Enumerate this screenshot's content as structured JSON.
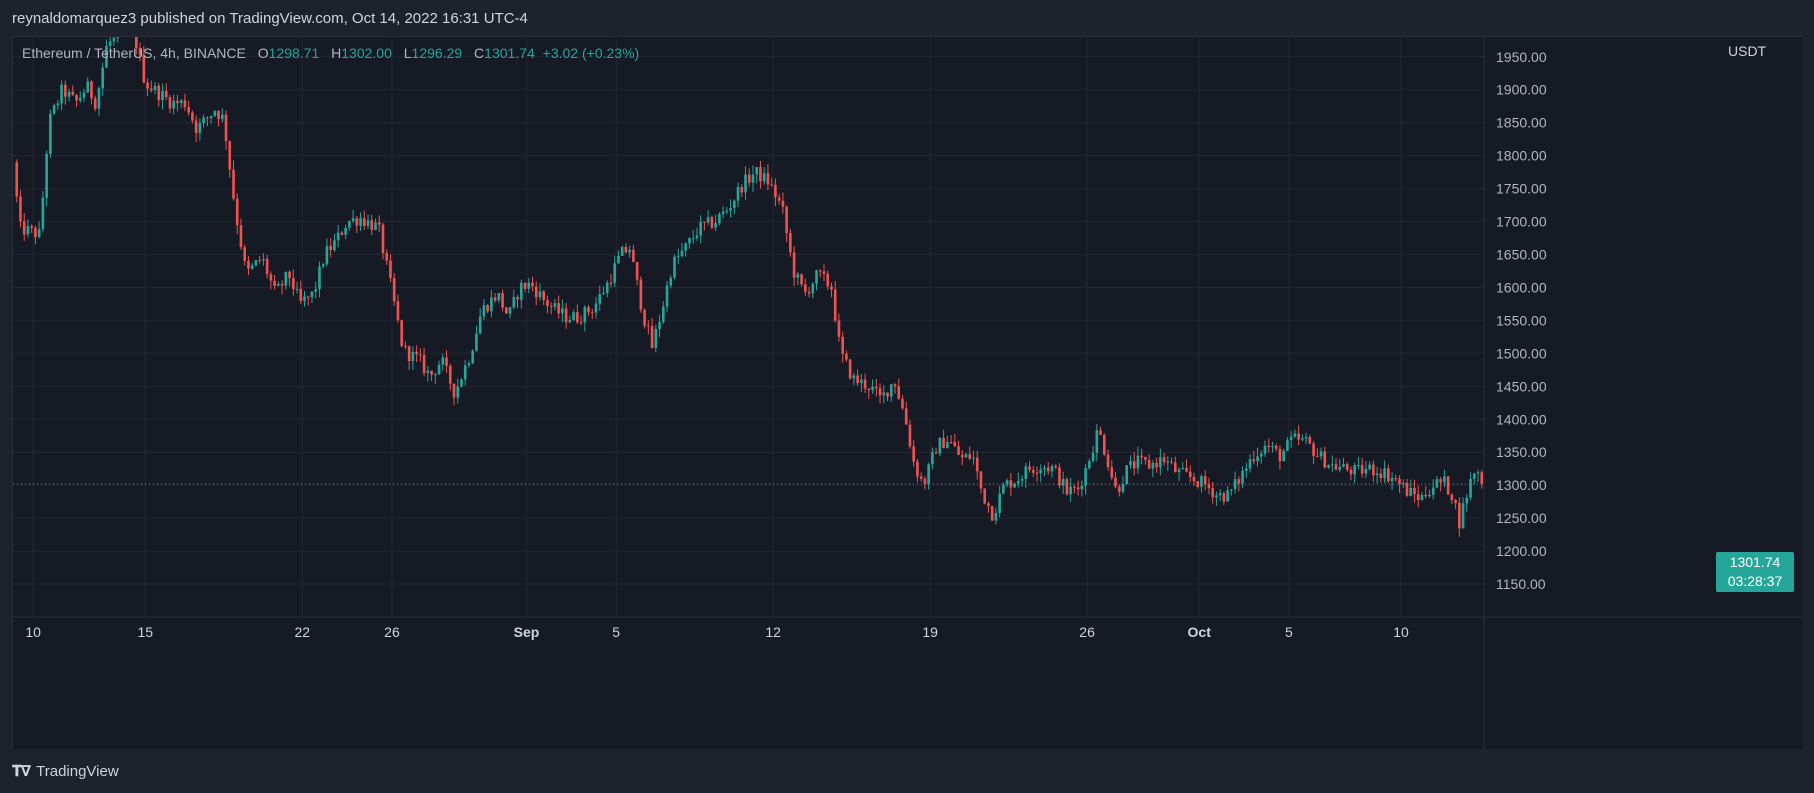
{
  "header": {
    "publish_line": "reynaldomarquez3 published on TradingView.com, Oct 14, 2022 16:31 UTC-4"
  },
  "legend": {
    "symbol": "Ethereum / TetherUS, 4h, BINANCE",
    "open_label": "O",
    "open_value": "1298.71",
    "high_label": "H",
    "high_value": "1302.00",
    "low_label": "L",
    "low_value": "1296.29",
    "close_label": "C",
    "close_value": "1301.74",
    "change": "+3.02 (+0.23%)"
  },
  "price_axis": {
    "unit": "USDT"
  },
  "last_price": {
    "price": "1301.74",
    "countdown": "03:28:37"
  },
  "footer": {
    "brand": "TradingView"
  },
  "colors": {
    "up": "#26a69a",
    "down": "#ef5350",
    "background": "#161a25",
    "grid": "#232734"
  },
  "chart_data": {
    "type": "candlestick",
    "ylim": [
      1100,
      1980
    ],
    "y_ticks": [
      1150,
      1200,
      1250,
      1300,
      1350,
      1400,
      1450,
      1500,
      1550,
      1600,
      1650,
      1700,
      1750,
      1800,
      1850,
      1900,
      1950
    ],
    "y_tick_labels": [
      "1150.00",
      "1200.00",
      "1250.00",
      "1300.00",
      "1350.00",
      "1400.00",
      "1450.00",
      "1500.00",
      "1550.00",
      "1600.00",
      "1650.00",
      "1700.00",
      "1750.00",
      "1800.00",
      "1850.00",
      "1900.00",
      "1950.00"
    ],
    "x_ticks": [
      {
        "label": "10",
        "day": 0,
        "bold": false
      },
      {
        "label": "15",
        "day": 5,
        "bold": false
      },
      {
        "label": "22",
        "day": 12,
        "bold": false
      },
      {
        "label": "26",
        "day": 16,
        "bold": false
      },
      {
        "label": "Sep",
        "day": 22,
        "bold": true
      },
      {
        "label": "5",
        "day": 26,
        "bold": false
      },
      {
        "label": "12",
        "day": 33,
        "bold": false
      },
      {
        "label": "19",
        "day": 40,
        "bold": false
      },
      {
        "label": "26",
        "day": 47,
        "bold": false
      },
      {
        "label": "Oct",
        "day": 52,
        "bold": true
      },
      {
        "label": "5",
        "day": 56,
        "bold": false
      },
      {
        "label": "10",
        "day": 61,
        "bold": false
      }
    ],
    "x_range_days": [
      -0.9,
      64.7
    ],
    "last_price_value": 1301.74,
    "keypoints": [
      [
        -0.9,
        1790
      ],
      [
        -0.6,
        1690
      ],
      [
        0.3,
        1680
      ],
      [
        0.7,
        1850
      ],
      [
        1.3,
        1900
      ],
      [
        1.9,
        1880
      ],
      [
        2.4,
        1905
      ],
      [
        2.8,
        1880
      ],
      [
        3.3,
        1970
      ],
      [
        4.2,
        1985
      ],
      [
        4.5,
        1985
      ],
      [
        5.0,
        1910
      ],
      [
        5.6,
        1895
      ],
      [
        6.2,
        1880
      ],
      [
        6.8,
        1880
      ],
      [
        7.3,
        1840
      ],
      [
        8.1,
        1870
      ],
      [
        8.5,
        1855
      ],
      [
        9.0,
        1720
      ],
      [
        9.5,
        1620
      ],
      [
        10.2,
        1645
      ],
      [
        10.8,
        1590
      ],
      [
        11.4,
        1620
      ],
      [
        11.9,
        1575
      ],
      [
        12.5,
        1590
      ],
      [
        13.0,
        1650
      ],
      [
        13.5,
        1670
      ],
      [
        14.0,
        1700
      ],
      [
        14.6,
        1705
      ],
      [
        15.4,
        1690
      ],
      [
        15.9,
        1610
      ],
      [
        16.5,
        1505
      ],
      [
        17.2,
        1490
      ],
      [
        17.7,
        1465
      ],
      [
        18.2,
        1490
      ],
      [
        18.8,
        1440
      ],
      [
        19.5,
        1500
      ],
      [
        20.0,
        1565
      ],
      [
        20.7,
        1590
      ],
      [
        21.2,
        1555
      ],
      [
        21.7,
        1600
      ],
      [
        22.2,
        1605
      ],
      [
        22.8,
        1580
      ],
      [
        23.3,
        1565
      ],
      [
        23.8,
        1555
      ],
      [
        24.3,
        1555
      ],
      [
        25.0,
        1570
      ],
      [
        25.6,
        1605
      ],
      [
        26.2,
        1650
      ],
      [
        26.6,
        1660
      ],
      [
        27.2,
        1560
      ],
      [
        27.6,
        1510
      ],
      [
        28.0,
        1560
      ],
      [
        28.5,
        1635
      ],
      [
        29.1,
        1660
      ],
      [
        29.7,
        1690
      ],
      [
        30.4,
        1700
      ],
      [
        31.0,
        1720
      ],
      [
        31.6,
        1755
      ],
      [
        32.2,
        1775
      ],
      [
        32.8,
        1760
      ],
      [
        33.4,
        1720
      ],
      [
        33.9,
        1625
      ],
      [
        34.4,
        1590
      ],
      [
        35.0,
        1620
      ],
      [
        35.6,
        1600
      ],
      [
        36.0,
        1500
      ],
      [
        36.6,
        1460
      ],
      [
        37.3,
        1450
      ],
      [
        37.8,
        1430
      ],
      [
        38.4,
        1460
      ],
      [
        38.9,
        1400
      ],
      [
        39.3,
        1330
      ],
      [
        39.7,
        1300
      ],
      [
        40.3,
        1360
      ],
      [
        40.8,
        1370
      ],
      [
        41.4,
        1340
      ],
      [
        41.9,
        1345
      ],
      [
        42.3,
        1290
      ],
      [
        42.8,
        1255
      ],
      [
        43.3,
        1300
      ],
      [
        43.9,
        1310
      ],
      [
        44.4,
        1325
      ],
      [
        45.0,
        1330
      ],
      [
        45.5,
        1325
      ],
      [
        46.1,
        1290
      ],
      [
        46.6,
        1295
      ],
      [
        47.0,
        1330
      ],
      [
        47.5,
        1385
      ],
      [
        47.9,
        1340
      ],
      [
        48.3,
        1290
      ],
      [
        48.8,
        1325
      ],
      [
        49.3,
        1335
      ],
      [
        49.8,
        1330
      ],
      [
        50.4,
        1340
      ],
      [
        51.0,
        1320
      ],
      [
        51.7,
        1310
      ],
      [
        52.3,
        1300
      ],
      [
        52.8,
        1285
      ],
      [
        53.3,
        1285
      ],
      [
        53.8,
        1310
      ],
      [
        54.4,
        1345
      ],
      [
        55.0,
        1360
      ],
      [
        55.6,
        1345
      ],
      [
        56.2,
        1370
      ],
      [
        56.8,
        1365
      ],
      [
        57.3,
        1345
      ],
      [
        57.9,
        1330
      ],
      [
        58.5,
        1325
      ],
      [
        59.0,
        1320
      ],
      [
        59.6,
        1325
      ],
      [
        60.2,
        1320
      ],
      [
        60.7,
        1310
      ],
      [
        61.3,
        1290
      ],
      [
        61.9,
        1280
      ],
      [
        62.4,
        1300
      ],
      [
        62.9,
        1305
      ],
      [
        63.3,
        1285
      ],
      [
        63.6,
        1245
      ],
      [
        64.0,
        1295
      ],
      [
        64.3,
        1325
      ],
      [
        64.7,
        1302
      ]
    ]
  }
}
